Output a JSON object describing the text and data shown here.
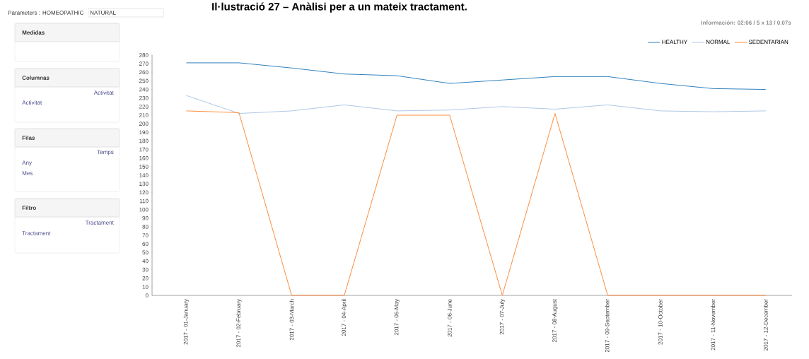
{
  "chart_data": {
    "type": "line",
    "title": "Il·lustració 27 – Anàlisi per a un mateix tractament.",
    "annotations": [
      "Parameters : HOMEOPATHIC",
      "NATURAL",
      "Medidas",
      "Columnas",
      "Activitat",
      "Activitat",
      "Filas",
      "Temps",
      "Any",
      "Mes",
      "Filtro",
      "Tractament",
      "Tractament",
      "Información:  02:06   / 5 x 13  /  0.07s"
    ],
    "categories": [
      "2017 - 01-January",
      "2017 - 02-February",
      "2017 - 03-March",
      "2017 - 04-April",
      "2017 - 05-May",
      "2017 - 06-June",
      "2017 - 07-July",
      "2017 - 08-August",
      "2017 - 09-September",
      "2017 - 10-October",
      "2017 - 11-November",
      "2017 - 12-December"
    ],
    "series": [
      {
        "name": "HEALTHY",
        "color": "#3182bd",
        "values": [
          271,
          271,
          265,
          258,
          256,
          247,
          251,
          255,
          255,
          247,
          241,
          240
        ]
      },
      {
        "name": "NORMAL",
        "color": "#aec7e8",
        "values": [
          233,
          212,
          215,
          222,
          215,
          216,
          220,
          217,
          222,
          215,
          214,
          215
        ]
      },
      {
        "name": "SEDENTARIAN",
        "color": "#fd8d3c",
        "values": [
          215,
          213,
          0,
          0,
          210,
          210,
          0,
          212,
          0,
          0,
          0,
          0
        ]
      }
    ],
    "ylim": [
      0,
      280
    ],
    "yticks": [
      0,
      10,
      20,
      30,
      40,
      50,
      60,
      70,
      80,
      90,
      100,
      110,
      120,
      130,
      140,
      150,
      160,
      170,
      180,
      190,
      200,
      210,
      220,
      230,
      240,
      250,
      260,
      270,
      280
    ],
    "grid": false,
    "legend": "top right",
    "marker": "none",
    "line_style": "solid"
  }
}
